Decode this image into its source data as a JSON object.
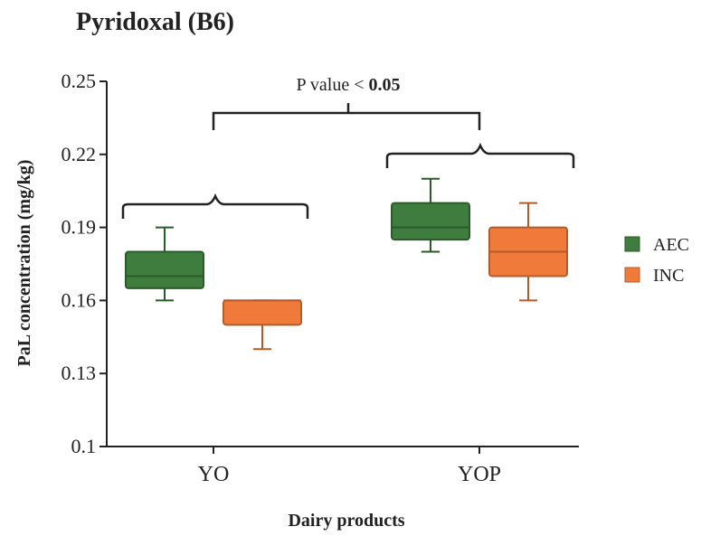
{
  "chart_data": {
    "type": "box",
    "title": "Pyridoxal (B6)",
    "xlabel": "Dairy products",
    "ylabel": "PaL concentration (mg/kg)",
    "ylim": [
      0.1,
      0.25
    ],
    "yticks": [
      "0.1",
      "0.13",
      "0.16",
      "0.19",
      "0.22",
      "0.25"
    ],
    "categories": [
      "YO",
      "YOP"
    ],
    "series": [
      {
        "name": "AEC",
        "color": "#3f7d3f",
        "boxes": [
          {
            "min": 0.16,
            "q1": 0.165,
            "median": 0.17,
            "q3": 0.18,
            "max": 0.19
          },
          {
            "min": 0.18,
            "q1": 0.185,
            "median": 0.19,
            "q3": 0.2,
            "max": 0.21
          }
        ]
      },
      {
        "name": "INC",
        "color": "#ef7a3a",
        "boxes": [
          {
            "min": 0.14,
            "q1": 0.15,
            "median": 0.16,
            "q3": 0.16,
            "max": 0.16
          },
          {
            "min": 0.16,
            "q1": 0.17,
            "median": 0.18,
            "q3": 0.19,
            "max": 0.2
          }
        ]
      }
    ],
    "annotation": {
      "prefix": "P value < ",
      "value": "0.05"
    },
    "grid": false,
    "legend_position": "right"
  }
}
